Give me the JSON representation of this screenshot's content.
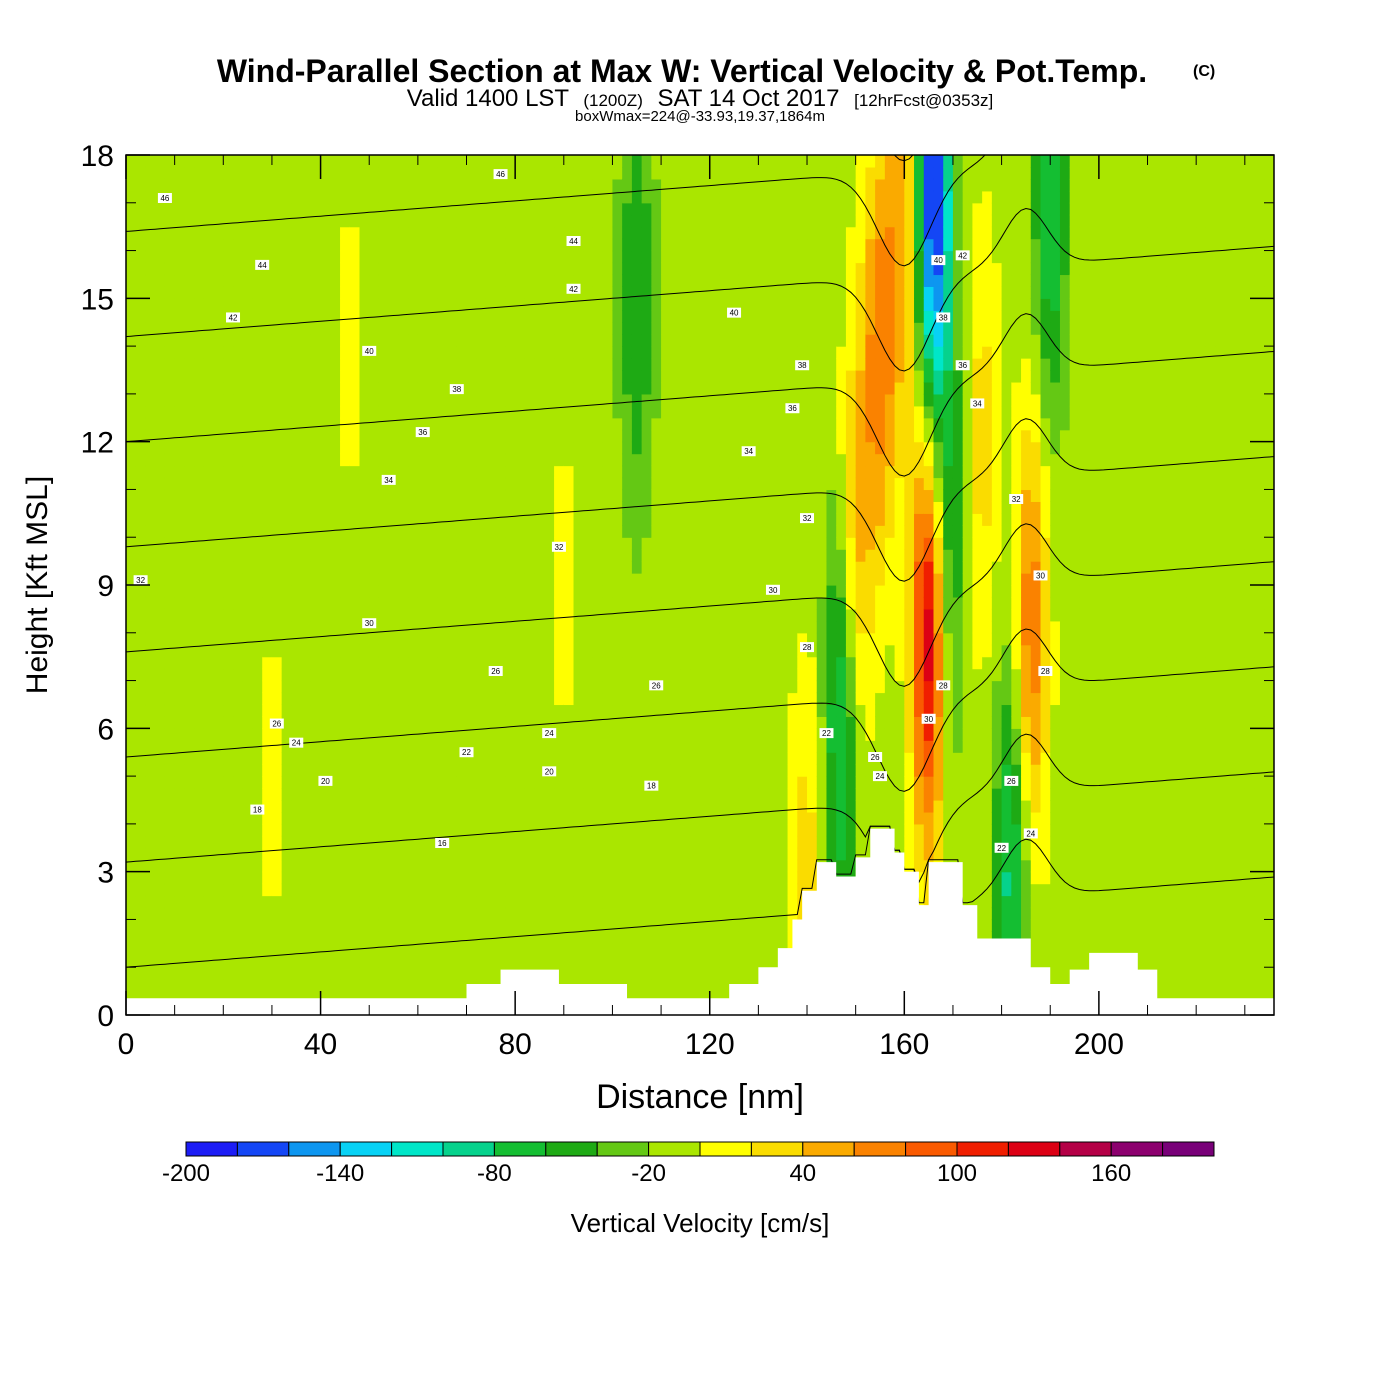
{
  "title": "Wind-Parallel Section at Max W: Vertical Velocity & Pot.Temp.",
  "title_mark": "(C)",
  "subtitle": {
    "valid": "Valid 1400 LST",
    "zulu": "(1200Z)",
    "date": "SAT 14 Oct 2017",
    "forecast": "[12hrFcst@0353z]"
  },
  "box_info": "boxWmax=224@-33.93,19.37,1864m",
  "chart_data": {
    "type": "heatmap",
    "xlabel": "Distance [nm]",
    "ylabel": "Height [Kft MSL]",
    "xlim": [
      0,
      236
    ],
    "ylim": [
      0,
      18
    ],
    "x_ticks": [
      0,
      40,
      80,
      120,
      160,
      200
    ],
    "y_ticks": [
      0,
      3,
      6,
      9,
      12,
      15,
      18
    ],
    "colorbar": {
      "label": "Vertical Velocity [cm/s]",
      "range": [
        -200,
        200
      ],
      "tick_labels": [
        -200,
        -140,
        -80,
        -20,
        40,
        100,
        160
      ],
      "colors": [
        "#1c1cf5",
        "#1446f5",
        "#0d96f0",
        "#08d2f5",
        "#00e6c8",
        "#06d28c",
        "#14be32",
        "#1eaa14",
        "#64c814",
        "#aae600",
        "#ffff00",
        "#fadc00",
        "#faaa00",
        "#fa8200",
        "#fa5a00",
        "#f01e00",
        "#dc0014",
        "#b40046",
        "#8c006e",
        "#780078"
      ]
    },
    "background_level": -10,
    "velocity_features": [
      {
        "x": 147,
        "z": 6,
        "w": -80
      },
      {
        "x": 150,
        "z": 10,
        "w": 60
      },
      {
        "x": 155,
        "z": 14,
        "w": 80
      },
      {
        "x": 160,
        "z": 17,
        "w": 60
      },
      {
        "x": 166,
        "z": 17,
        "w": -180
      },
      {
        "x": 165,
        "z": 8,
        "w": 150
      },
      {
        "x": 169,
        "z": 10,
        "w": -60
      },
      {
        "x": 176,
        "z": 12,
        "w": 40
      },
      {
        "x": 182,
        "z": 3,
        "w": -80
      },
      {
        "x": 186,
        "z": 8,
        "w": 90
      },
      {
        "x": 190,
        "z": 17,
        "w": -70
      },
      {
        "x": 140,
        "z": 3,
        "w": 40
      },
      {
        "x": 105,
        "z": 15,
        "w": -50
      },
      {
        "x": 46,
        "z": 14,
        "w": 15
      },
      {
        "x": 90,
        "z": 9,
        "w": 15
      },
      {
        "x": 30,
        "z": 5,
        "w": 15
      }
    ],
    "topography": [
      [
        0,
        0.35
      ],
      [
        70,
        0.35
      ],
      [
        70,
        0.65
      ],
      [
        77,
        0.65
      ],
      [
        77,
        0.95
      ],
      [
        89,
        0.95
      ],
      [
        89,
        0.65
      ],
      [
        103,
        0.65
      ],
      [
        103,
        0.35
      ],
      [
        124,
        0.35
      ],
      [
        124,
        0.65
      ],
      [
        130,
        0.65
      ],
      [
        130,
        1.0
      ],
      [
        134,
        1.0
      ],
      [
        134,
        1.4
      ],
      [
        137,
        1.4
      ],
      [
        137,
        2.0
      ],
      [
        139,
        2.0
      ],
      [
        139,
        2.6
      ],
      [
        142,
        2.6
      ],
      [
        142,
        3.2
      ],
      [
        146,
        3.2
      ],
      [
        146,
        2.9
      ],
      [
        150,
        2.9
      ],
      [
        150,
        3.3
      ],
      [
        153,
        3.3
      ],
      [
        153,
        3.9
      ],
      [
        158,
        3.9
      ],
      [
        158,
        3.4
      ],
      [
        160,
        3.4
      ],
      [
        160,
        3.0
      ],
      [
        163,
        3.0
      ],
      [
        163,
        2.3
      ],
      [
        165,
        2.3
      ],
      [
        165,
        3.2
      ],
      [
        172,
        3.2
      ],
      [
        172,
        2.3
      ],
      [
        175,
        2.3
      ],
      [
        175,
        1.6
      ],
      [
        186,
        1.6
      ],
      [
        186,
        1.0
      ],
      [
        190,
        1.0
      ],
      [
        190,
        0.65
      ],
      [
        194,
        0.65
      ],
      [
        194,
        0.95
      ],
      [
        198,
        0.95
      ],
      [
        198,
        1.3
      ],
      [
        208,
        1.3
      ],
      [
        208,
        0.95
      ],
      [
        212,
        0.95
      ],
      [
        212,
        0.35
      ],
      [
        236,
        0.35
      ]
    ],
    "theta_levels": [
      16,
      18,
      20,
      22,
      24,
      26,
      28,
      30,
      32,
      34,
      36,
      38,
      40,
      42,
      44,
      46
    ],
    "theta_labels": [
      {
        "x": 65,
        "z": 3.6,
        "text": "16"
      },
      {
        "x": 27,
        "z": 4.3,
        "text": "18"
      },
      {
        "x": 41,
        "z": 4.9,
        "text": "20"
      },
      {
        "x": 87,
        "z": 5.1,
        "text": "20"
      },
      {
        "x": 108,
        "z": 4.8,
        "text": "18"
      },
      {
        "x": 35,
        "z": 5.7,
        "text": "24"
      },
      {
        "x": 70,
        "z": 5.5,
        "text": "22"
      },
      {
        "x": 87,
        "z": 5.9,
        "text": "24"
      },
      {
        "x": 31,
        "z": 6.1,
        "text": "26"
      },
      {
        "x": 109,
        "z": 6.9,
        "text": "26"
      },
      {
        "x": 76,
        "z": 7.2,
        "text": "26"
      },
      {
        "x": 50,
        "z": 8.2,
        "text": "30"
      },
      {
        "x": 133,
        "z": 8.9,
        "text": "30"
      },
      {
        "x": 140,
        "z": 7.7,
        "text": "28"
      },
      {
        "x": 144,
        "z": 5.9,
        "text": "22"
      },
      {
        "x": 154,
        "z": 5.4,
        "text": "26"
      },
      {
        "x": 155,
        "z": 5.0,
        "text": "24"
      },
      {
        "x": 165,
        "z": 6.2,
        "text": "30"
      },
      {
        "x": 168,
        "z": 6.9,
        "text": "28"
      },
      {
        "x": 3,
        "z": 9.1,
        "text": "32"
      },
      {
        "x": 89,
        "z": 9.8,
        "text": "32"
      },
      {
        "x": 140,
        "z": 10.4,
        "text": "32"
      },
      {
        "x": 183,
        "z": 10.8,
        "text": "32"
      },
      {
        "x": 188,
        "z": 9.2,
        "text": "30"
      },
      {
        "x": 189,
        "z": 7.2,
        "text": "28"
      },
      {
        "x": 182,
        "z": 4.9,
        "text": "26"
      },
      {
        "x": 186,
        "z": 3.8,
        "text": "24"
      },
      {
        "x": 180,
        "z": 3.5,
        "text": "22"
      },
      {
        "x": 54,
        "z": 11.2,
        "text": "34"
      },
      {
        "x": 128,
        "z": 11.8,
        "text": "34"
      },
      {
        "x": 61,
        "z": 12.2,
        "text": "36"
      },
      {
        "x": 137,
        "z": 12.7,
        "text": "36"
      },
      {
        "x": 68,
        "z": 13.1,
        "text": "38"
      },
      {
        "x": 139,
        "z": 13.6,
        "text": "38"
      },
      {
        "x": 50,
        "z": 13.9,
        "text": "40"
      },
      {
        "x": 125,
        "z": 14.7,
        "text": "40"
      },
      {
        "x": 22,
        "z": 14.6,
        "text": "42"
      },
      {
        "x": 92,
        "z": 15.2,
        "text": "42"
      },
      {
        "x": 28,
        "z": 15.7,
        "text": "44"
      },
      {
        "x": 92,
        "z": 16.2,
        "text": "44"
      },
      {
        "x": 8,
        "z": 17.1,
        "text": "46"
      },
      {
        "x": 77,
        "z": 17.6,
        "text": "46"
      },
      {
        "x": 167,
        "z": 15.8,
        "text": "40"
      },
      {
        "x": 172,
        "z": 15.9,
        "text": "42"
      },
      {
        "x": 168,
        "z": 14.6,
        "text": "38"
      },
      {
        "x": 172,
        "z": 13.6,
        "text": "36"
      },
      {
        "x": 175,
        "z": 12.8,
        "text": "34"
      }
    ]
  }
}
